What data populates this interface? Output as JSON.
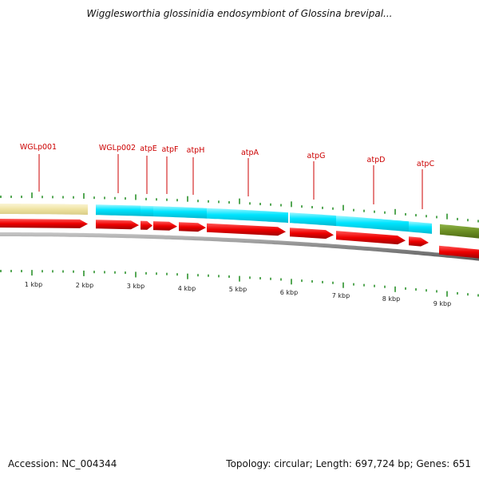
{
  "title": "Wigglesworthia glossinidia endosymbiont of Glossina brevipal...",
  "footer": {
    "accession": "Accession: NC_004344",
    "summary": "Topology: circular; Length: 697,724 bp; Genes: 651"
  },
  "scale_labels": [
    "1 kbp",
    "2 kbp",
    "3 kbp",
    "4 kbp",
    "5 kbp",
    "6 kbp",
    "7 kbp",
    "8 kbp",
    "9 kbp"
  ],
  "gene_labels": [
    "WGLp001",
    "WGLp002",
    "atpE",
    "atpF",
    "atpH",
    "atpA",
    "atpG",
    "atpD",
    "atpC"
  ],
  "colors": {
    "gene_label": "#cc0000",
    "cds_arrow": "#ee0000",
    "band_blue": "#00e5ff",
    "band_yellow": "#f0e6a6",
    "band_olive": "#6b8e23",
    "tick": "#1e8b1e",
    "backbone": "#888888"
  }
}
